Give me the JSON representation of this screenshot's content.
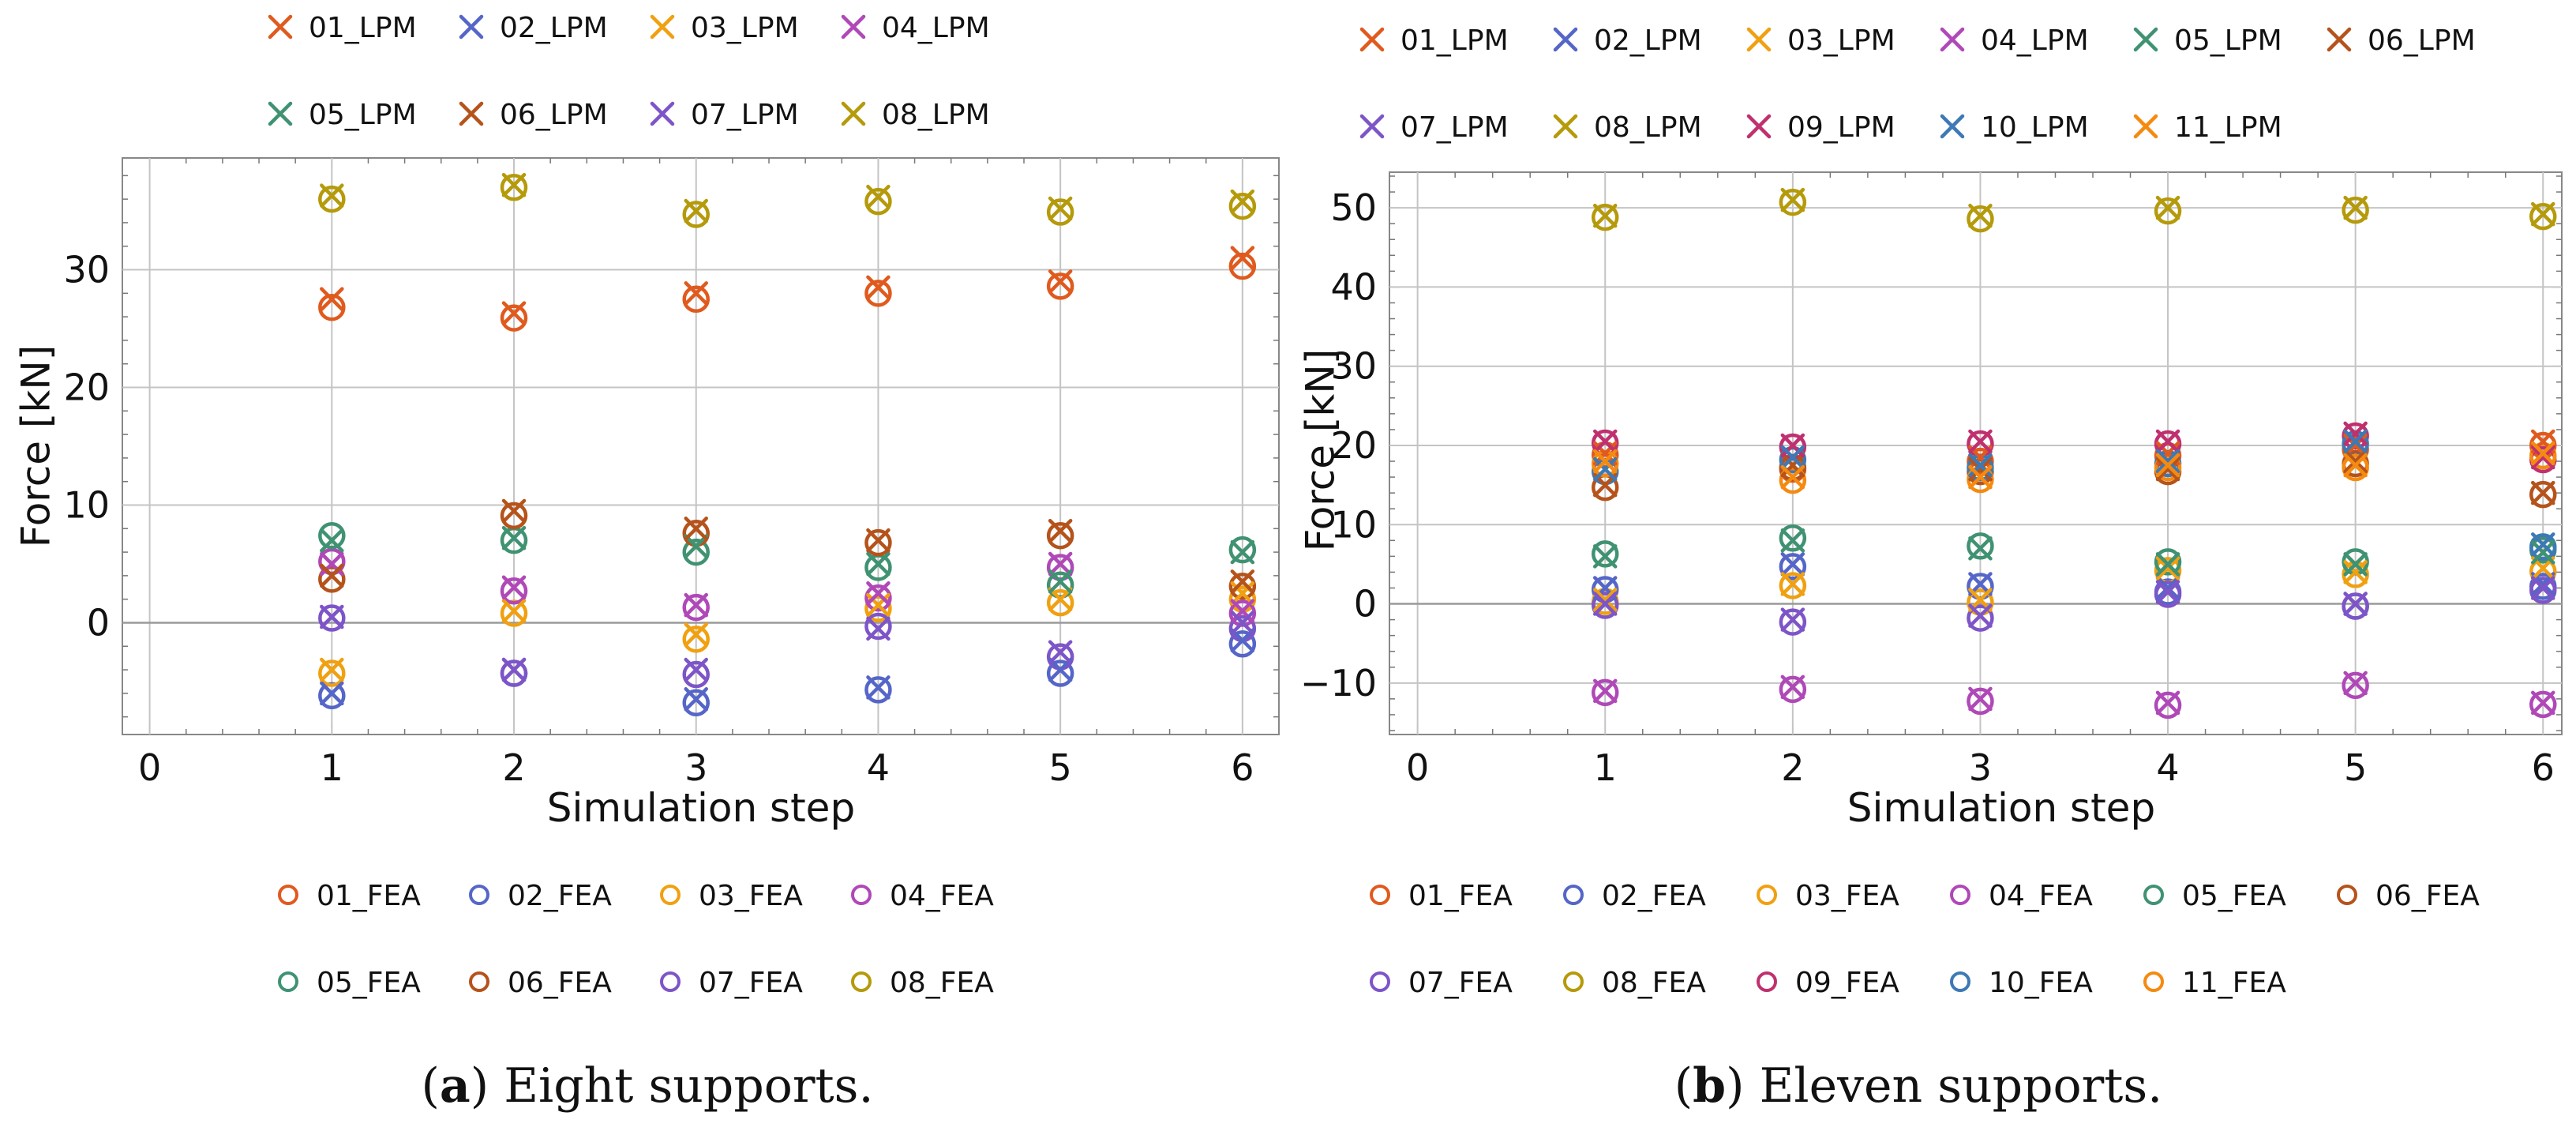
{
  "chart_data": [
    {
      "type": "scatter",
      "caption": {
        "letter": "a",
        "text": "Eight supports."
      },
      "xlabel": "Simulation step",
      "ylabel": "Force [kN]",
      "xlim": [
        -0.15,
        6.2
      ],
      "ylim": [
        -9.5,
        39.5
      ],
      "xticks": [
        0,
        1,
        2,
        3,
        4,
        5,
        6
      ],
      "yticks": [
        0,
        10,
        20,
        30
      ],
      "grid": true,
      "x": [
        1,
        2,
        3,
        4,
        5,
        6
      ],
      "series": [
        {
          "name": "01",
          "color": "#e05a1e",
          "lpm": [
            27.5,
            26.3,
            28.0,
            28.5,
            29.0,
            31.0
          ],
          "fea": [
            26.8,
            25.9,
            27.5,
            28.0,
            28.6,
            30.3
          ]
        },
        {
          "name": "02",
          "color": "#5566c8",
          "lpm": [
            -6.0,
            -4.0,
            -6.5,
            -5.5,
            -4.0,
            -1.5
          ],
          "fea": [
            -6.2,
            -4.3,
            -6.8,
            -5.7,
            -4.3,
            -1.8
          ]
        },
        {
          "name": "03",
          "color": "#f0a010",
          "lpm": [
            -4.0,
            1.0,
            -1.0,
            1.5,
            2.0,
            2.5
          ],
          "fea": [
            -4.3,
            0.8,
            -1.4,
            1.2,
            1.7,
            2.0
          ]
        },
        {
          "name": "04",
          "color": "#b048b8",
          "lpm": [
            5.0,
            3.0,
            1.5,
            2.5,
            5.0,
            1.0
          ],
          "fea": [
            5.2,
            2.7,
            1.3,
            2.1,
            4.7,
            0.8
          ]
        },
        {
          "name": "05",
          "color": "#3f9272",
          "lpm": [
            7.0,
            7.2,
            6.5,
            5.0,
            3.5,
            6.0
          ],
          "fea": [
            7.4,
            7.0,
            6.0,
            4.7,
            3.2,
            6.2
          ]
        },
        {
          "name": "06",
          "color": "#b5531b",
          "lpm": [
            4.0,
            9.5,
            8.0,
            7.0,
            7.8,
            3.5
          ],
          "fea": [
            3.7,
            9.1,
            7.6,
            6.8,
            7.4,
            3.1
          ]
        },
        {
          "name": "07",
          "color": "#7d55c8",
          "lpm": [
            0.5,
            -4.0,
            -4.0,
            -0.5,
            -2.5,
            0.0
          ],
          "fea": [
            0.4,
            -4.3,
            -4.4,
            -0.3,
            -2.9,
            -0.5
          ]
        },
        {
          "name": "08",
          "color": "#b59a0a",
          "lpm": [
            36.3,
            37.2,
            35.0,
            36.2,
            35.2,
            35.8
          ],
          "fea": [
            36.0,
            37.0,
            34.7,
            35.8,
            34.9,
            35.4
          ]
        }
      ],
      "legend_lpm": [
        "01_LPM",
        "02_LPM",
        "03_LPM",
        "04_LPM",
        "05_LPM",
        "06_LPM",
        "07_LPM",
        "08_LPM"
      ],
      "legend_fea": [
        "01_FEA",
        "02_FEA",
        "03_FEA",
        "04_FEA",
        "05_FEA",
        "06_FEA",
        "07_FEA",
        "08_FEA"
      ],
      "legend_columns": 4
    },
    {
      "type": "scatter",
      "caption": {
        "letter": "b",
        "text": "Eleven supports."
      },
      "xlabel": "Simulation step",
      "ylabel": "Force [kN]",
      "xlim": [
        -0.15,
        6.1
      ],
      "ylim": [
        -16.5,
        54.5
      ],
      "xticks": [
        0,
        1,
        2,
        3,
        4,
        5,
        6
      ],
      "yticks": [
        -10,
        0,
        10,
        20,
        30,
        40,
        50
      ],
      "grid": true,
      "x": [
        1,
        2,
        3,
        4,
        5,
        6
      ],
      "series": [
        {
          "name": "01",
          "color": "#e05a1e",
          "lpm": [
            19.0,
            17.5,
            18.5,
            19.0,
            20.0,
            20.5
          ],
          "fea": [
            18.8,
            17.0,
            18.0,
            18.7,
            19.5,
            20.0
          ]
        },
        {
          "name": "02",
          "color": "#5566c8",
          "lpm": [
            2.0,
            5.0,
            2.5,
            2.0,
            0.0,
            2.5
          ],
          "fea": [
            1.8,
            4.7,
            2.2,
            1.5,
            -0.3,
            2.2
          ]
        },
        {
          "name": "03",
          "color": "#f0a010",
          "lpm": [
            0.5,
            2.5,
            0.5,
            4.5,
            4.0,
            4.5
          ],
          "fea": [
            0.3,
            2.3,
            0.2,
            4.2,
            3.7,
            4.1
          ]
        },
        {
          "name": "04",
          "color": "#b048b8",
          "lpm": [
            -11.0,
            -10.5,
            -12.0,
            -12.5,
            -10.0,
            -12.5
          ],
          "fea": [
            -11.2,
            -10.8,
            -12.3,
            -12.8,
            -10.3,
            -12.7
          ]
        },
        {
          "name": "05",
          "color": "#3f9272",
          "lpm": [
            6.0,
            8.0,
            7.0,
            5.0,
            5.0,
            6.5
          ],
          "fea": [
            6.3,
            8.3,
            7.3,
            5.3,
            5.3,
            6.8
          ]
        },
        {
          "name": "06",
          "color": "#b5531b",
          "lpm": [
            15.0,
            17.5,
            17.0,
            17.0,
            18.0,
            14.0
          ],
          "fea": [
            14.7,
            17.2,
            16.7,
            16.7,
            17.7,
            13.8
          ]
        },
        {
          "name": "07",
          "color": "#7d55c8",
          "lpm": [
            0.0,
            -2.0,
            -1.5,
            1.5,
            0.0,
            2.0
          ],
          "fea": [
            -0.2,
            -2.3,
            -1.8,
            1.2,
            -0.3,
            1.7
          ]
        },
        {
          "name": "08",
          "color": "#b59a0a",
          "lpm": [
            49.0,
            51.0,
            49.0,
            50.0,
            50.0,
            49.2
          ],
          "fea": [
            48.8,
            50.7,
            48.6,
            49.6,
            49.7,
            48.9
          ]
        },
        {
          "name": "09",
          "color": "#c0306e",
          "lpm": [
            20.5,
            20.0,
            20.5,
            20.5,
            21.5,
            18.5
          ],
          "fea": [
            20.3,
            19.8,
            20.2,
            20.2,
            21.2,
            18.2
          ]
        },
        {
          "name": "10",
          "color": "#3d79b5",
          "lpm": [
            17.0,
            18.5,
            17.5,
            18.0,
            20.5,
            7.5
          ],
          "fea": [
            16.7,
            18.2,
            17.2,
            17.7,
            20.2,
            7.2
          ]
        },
        {
          "name": "11",
          "color": "#f58a10",
          "lpm": [
            18.0,
            16.0,
            16.0,
            17.5,
            17.5,
            19.0
          ],
          "fea": [
            17.7,
            15.6,
            15.7,
            17.2,
            17.2,
            18.7
          ]
        }
      ],
      "legend_lpm": [
        "01_LPM",
        "02_LPM",
        "03_LPM",
        "04_LPM",
        "05_LPM",
        "06_LPM",
        "07_LPM",
        "08_LPM",
        "09_LPM",
        "10_LPM",
        "11_LPM"
      ],
      "legend_fea": [
        "01_FEA",
        "02_FEA",
        "03_FEA",
        "04_FEA",
        "05_FEA",
        "06_FEA",
        "07_FEA",
        "08_FEA",
        "09_FEA",
        "10_FEA",
        "11_FEA"
      ],
      "legend_columns": 6
    }
  ]
}
